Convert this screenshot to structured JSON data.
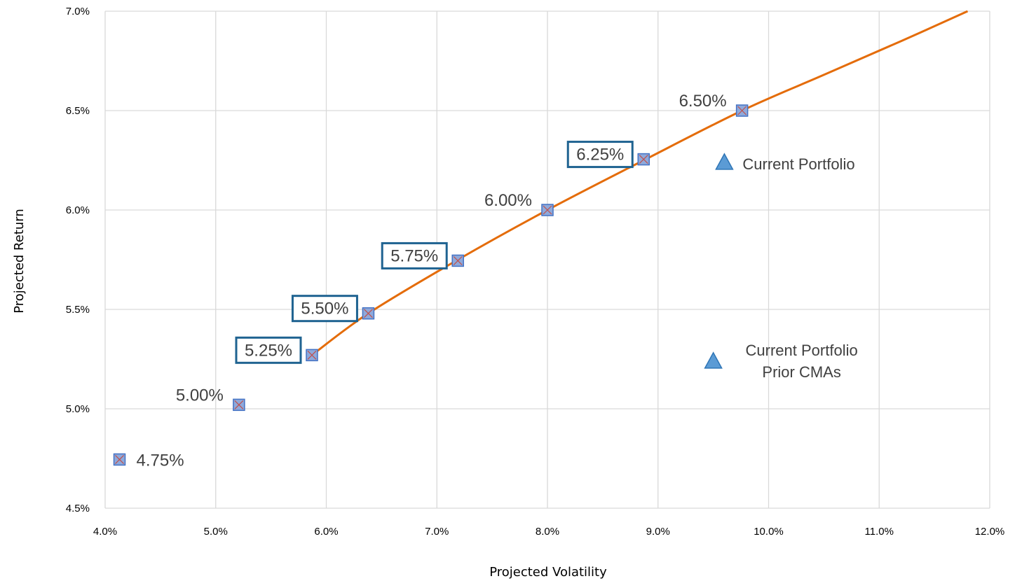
{
  "chart_data": {
    "type": "scatter",
    "title": "",
    "xlabel": "Projected Volatility",
    "ylabel": "Projected Return",
    "xlim": [
      0.04,
      0.12
    ],
    "ylim": [
      0.045,
      0.07
    ],
    "x_ticks": [
      "4.0%",
      "5.0%",
      "6.0%",
      "7.0%",
      "8.0%",
      "9.0%",
      "10.0%",
      "11.0%",
      "12.0%"
    ],
    "y_ticks": [
      "4.5%",
      "5.0%",
      "5.5%",
      "6.0%",
      "6.5%",
      "7.0%"
    ],
    "grid": true,
    "colors": {
      "frontier_line": "#E46C0A",
      "marker_fill": "#8EA9DB",
      "marker_edge": "#4472C4",
      "marker_cross": "#C0504D",
      "label_box": "#1F6391",
      "triangle_fill": "#5B9BD5",
      "triangle_edge": "#2E75B6",
      "grid": "#D9D9D9"
    },
    "frontier_curve": {
      "name": "",
      "points": [
        [
          0.0587,
          0.0527
        ],
        [
          0.0638,
          0.0548
        ],
        [
          0.0719,
          0.0575
        ],
        [
          0.08,
          0.06
        ],
        [
          0.0887,
          0.0625
        ],
        [
          0.0976,
          0.065
        ],
        [
          0.105,
          0.0668
        ],
        [
          0.112,
          0.0685
        ],
        [
          0.118,
          0.07
        ]
      ]
    },
    "portfolios": [
      {
        "label": "4.75%",
        "x": 0.0413,
        "y": 0.04745,
        "boxed": false,
        "label_pos": "right"
      },
      {
        "label": "5.00%",
        "x": 0.0521,
        "y": 0.0502,
        "boxed": false,
        "label_pos": "left"
      },
      {
        "label": "5.25%",
        "x": 0.0587,
        "y": 0.0527,
        "boxed": true,
        "label_pos": "left"
      },
      {
        "label": "5.50%",
        "x": 0.0638,
        "y": 0.0548,
        "boxed": true,
        "label_pos": "left"
      },
      {
        "label": "5.75%",
        "x": 0.0719,
        "y": 0.05745,
        "boxed": true,
        "label_pos": "left"
      },
      {
        "label": "6.00%",
        "x": 0.08,
        "y": 0.06,
        "boxed": false,
        "label_pos": "left"
      },
      {
        "label": "6.25%",
        "x": 0.0887,
        "y": 0.06255,
        "boxed": true,
        "label_pos": "left"
      },
      {
        "label": "6.50%",
        "x": 0.0976,
        "y": 0.065,
        "boxed": false,
        "label_pos": "left"
      }
    ],
    "annotations": [
      {
        "label": "Current Portfolio",
        "lines": [
          "Current Portfolio"
        ],
        "x": 0.096,
        "y": 0.0624,
        "marker": "triangle",
        "label_pos": "right"
      },
      {
        "label": "Current Portfolio Prior CMAs",
        "lines": [
          "Current Portfolio",
          "Prior CMAs"
        ],
        "x": 0.095,
        "y": 0.0524,
        "marker": "triangle",
        "label_pos": "right-above"
      }
    ]
  }
}
